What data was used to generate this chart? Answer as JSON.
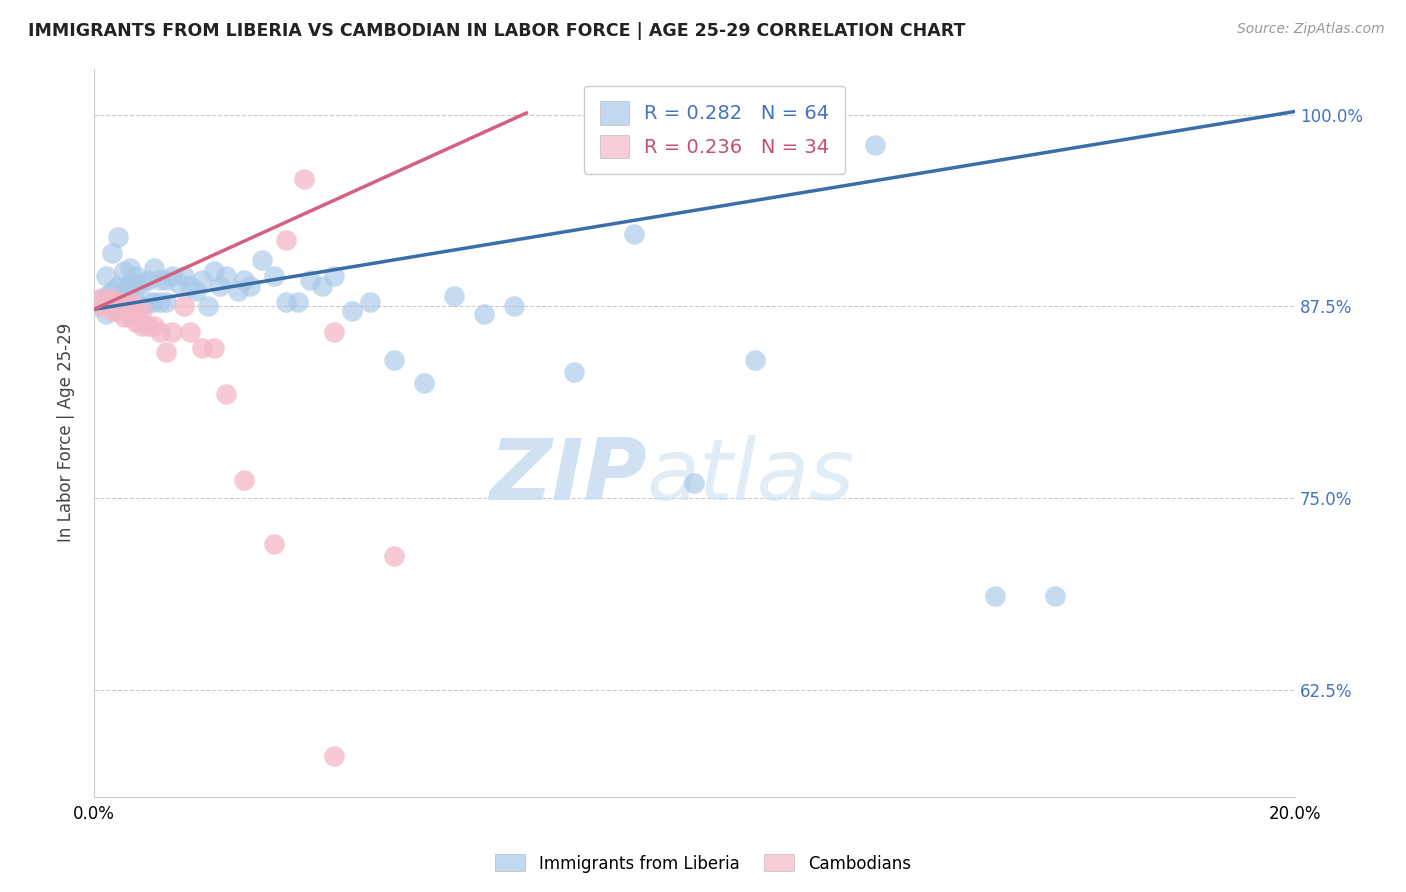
{
  "title": "IMMIGRANTS FROM LIBERIA VS CAMBODIAN IN LABOR FORCE | AGE 25-29 CORRELATION CHART",
  "source": "Source: ZipAtlas.com",
  "ylabel": "In Labor Force | Age 25-29",
  "xlim": [
    0.0,
    0.2
  ],
  "ylim": [
    0.555,
    1.03
  ],
  "yticks": [
    0.625,
    0.75,
    0.875,
    1.0
  ],
  "ytick_labels": [
    "62.5%",
    "75.0%",
    "87.5%",
    "100.0%"
  ],
  "xticks": [
    0.0,
    0.04,
    0.08,
    0.12,
    0.16,
    0.2
  ],
  "xtick_labels": [
    "0.0%",
    "",
    "",
    "",
    "",
    "20.0%"
  ],
  "watermark_zip": "ZIP",
  "watermark_atlas": "atlas",
  "blue_r": 0.282,
  "blue_n": 64,
  "pink_r": 0.236,
  "pink_n": 34,
  "blue_color": "#a8c8e8",
  "pink_color": "#f4b8c8",
  "blue_line_color": "#3a6ea8",
  "pink_line_color": "#d46080",
  "blue_line_x": [
    0.0,
    0.2
  ],
  "blue_line_y": [
    0.873,
    1.002
  ],
  "pink_line_x": [
    0.0,
    0.072
  ],
  "pink_line_y": [
    0.873,
    1.001
  ],
  "blue_points_x": [
    0.001,
    0.001,
    0.002,
    0.002,
    0.002,
    0.003,
    0.003,
    0.003,
    0.004,
    0.004,
    0.004,
    0.005,
    0.005,
    0.005,
    0.006,
    0.006,
    0.006,
    0.007,
    0.007,
    0.007,
    0.008,
    0.008,
    0.009,
    0.009,
    0.01,
    0.01,
    0.011,
    0.011,
    0.012,
    0.012,
    0.013,
    0.014,
    0.015,
    0.016,
    0.017,
    0.018,
    0.019,
    0.02,
    0.021,
    0.022,
    0.024,
    0.025,
    0.026,
    0.028,
    0.03,
    0.032,
    0.034,
    0.036,
    0.038,
    0.04,
    0.043,
    0.046,
    0.05,
    0.055,
    0.06,
    0.065,
    0.07,
    0.08,
    0.09,
    0.1,
    0.11,
    0.13,
    0.15,
    0.16
  ],
  "blue_points_y": [
    0.875,
    0.88,
    0.87,
    0.882,
    0.895,
    0.875,
    0.885,
    0.91,
    0.878,
    0.888,
    0.92,
    0.878,
    0.888,
    0.898,
    0.878,
    0.888,
    0.9,
    0.878,
    0.888,
    0.895,
    0.875,
    0.89,
    0.878,
    0.892,
    0.878,
    0.9,
    0.878,
    0.892,
    0.878,
    0.892,
    0.895,
    0.89,
    0.895,
    0.888,
    0.885,
    0.892,
    0.875,
    0.898,
    0.888,
    0.895,
    0.885,
    0.892,
    0.888,
    0.905,
    0.895,
    0.878,
    0.878,
    0.892,
    0.888,
    0.895,
    0.872,
    0.878,
    0.84,
    0.825,
    0.882,
    0.87,
    0.875,
    0.832,
    0.922,
    0.76,
    0.84,
    0.98,
    0.686,
    0.686
  ],
  "pink_points_x": [
    0.001,
    0.001,
    0.002,
    0.002,
    0.003,
    0.003,
    0.003,
    0.004,
    0.004,
    0.005,
    0.005,
    0.006,
    0.006,
    0.007,
    0.007,
    0.008,
    0.008,
    0.009,
    0.01,
    0.011,
    0.012,
    0.013,
    0.015,
    0.016,
    0.018,
    0.02,
    0.022,
    0.025,
    0.03,
    0.032,
    0.035,
    0.04,
    0.05,
    0.04
  ],
  "pink_points_y": [
    0.875,
    0.88,
    0.875,
    0.88,
    0.872,
    0.88,
    0.878,
    0.872,
    0.878,
    0.868,
    0.875,
    0.868,
    0.878,
    0.865,
    0.875,
    0.862,
    0.872,
    0.862,
    0.862,
    0.858,
    0.845,
    0.858,
    0.875,
    0.858,
    0.848,
    0.848,
    0.818,
    0.762,
    0.72,
    0.918,
    0.958,
    0.858,
    0.712,
    0.582
  ],
  "background_color": "#ffffff",
  "grid_color": "#cccccc"
}
